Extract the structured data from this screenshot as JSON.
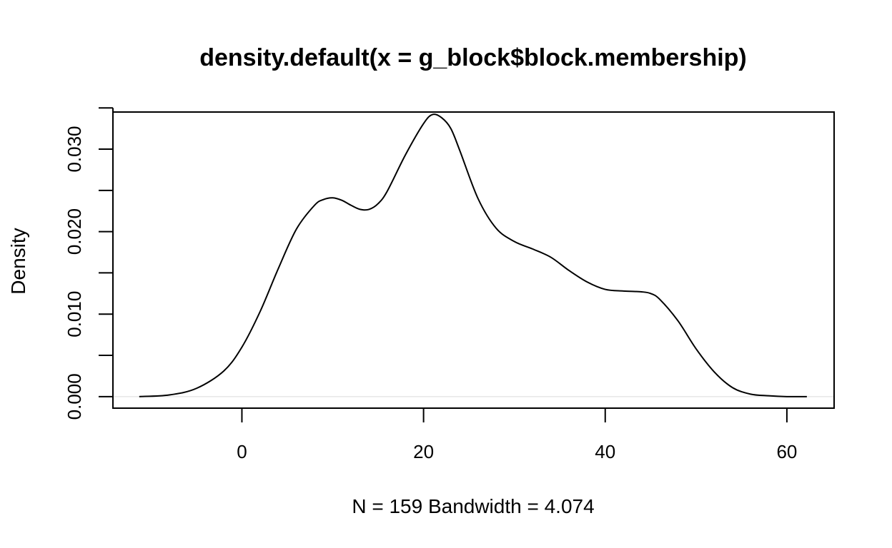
{
  "chart_data": {
    "type": "line",
    "title": "density.default(x = g_block$block.membership)",
    "xlabel": "N = 159   Bandwidth = 4.074",
    "ylabel": "Density",
    "xlim": [
      -14.2,
      65.2
    ],
    "ylim": [
      -0.0014,
      0.0345
    ],
    "x_ticks": [
      0,
      20,
      40,
      60
    ],
    "x_tick_labels": [
      "0",
      "20",
      "40",
      "60"
    ],
    "y_ticks": [
      0,
      0.005,
      0.01,
      0.015,
      0.02,
      0.025,
      0.03,
      0.035
    ],
    "y_tick_labels": [
      "0.000",
      "",
      "0.010",
      "",
      "0.020",
      "",
      "0.030",
      ""
    ],
    "grid": false,
    "legend": "none",
    "zero_line": true,
    "series": [
      {
        "x": [
          -11.3,
          -8,
          -5,
          -2,
          0,
          2,
          4,
          6,
          8,
          9,
          10,
          11,
          12,
          13,
          14,
          15,
          16,
          18,
          20,
          21,
          22,
          23,
          24,
          26,
          28,
          30,
          32,
          34,
          36,
          38,
          40,
          42,
          44,
          45,
          46,
          48,
          50,
          52,
          54,
          56,
          58,
          60,
          62.2
        ],
        "y": [
          0.0,
          0.0002,
          0.001,
          0.0031,
          0.006,
          0.0103,
          0.0155,
          0.0203,
          0.0232,
          0.0239,
          0.0241,
          0.0238,
          0.0232,
          0.0227,
          0.0227,
          0.0234,
          0.0249,
          0.0293,
          0.0331,
          0.0342,
          0.0338,
          0.0325,
          0.0298,
          0.024,
          0.0204,
          0.0188,
          0.0179,
          0.0169,
          0.0153,
          0.0139,
          0.013,
          0.0128,
          0.0127,
          0.0125,
          0.0118,
          0.0092,
          0.0058,
          0.003,
          0.0011,
          0.0003,
          0.0001,
          0.0,
          0.0
        ]
      }
    ]
  }
}
